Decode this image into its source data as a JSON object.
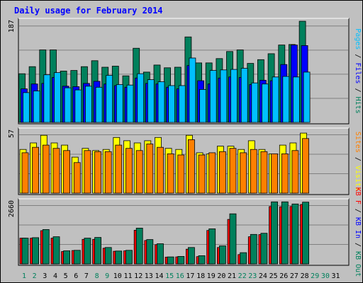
{
  "chart_data": {
    "type": "bar",
    "title": "Daily usage for February 2014",
    "days": [
      "1",
      "2",
      "3",
      "4",
      "5",
      "6",
      "7",
      "8",
      "9",
      "10",
      "11",
      "12",
      "13",
      "14",
      "15",
      "16",
      "17",
      "18",
      "19",
      "20",
      "21",
      "22",
      "23",
      "24",
      "25",
      "26",
      "27",
      "28",
      "29",
      "30",
      "31"
    ],
    "weekend_days": [
      "1",
      "2",
      "8",
      "9",
      "15",
      "16",
      "22",
      "23",
      "29",
      "30"
    ],
    "no_data_days": [
      "29",
      "30",
      "31"
    ],
    "panels": [
      {
        "id": "hits",
        "ymax_label": "187",
        "ymax": 187,
        "axis_label_parts": [
          {
            "text": "Pages",
            "color": "#00bfff"
          },
          {
            "text": " / ",
            "color": "#000000"
          },
          {
            "text": "Files",
            "color": "#0000ff"
          },
          {
            "text": " / ",
            "color": "#000000"
          },
          {
            "text": "Hits",
            "color": "#00805c"
          }
        ],
        "series": [
          {
            "name": "Hits",
            "color": "#00805c",
            "values": [
              90,
              103,
              134,
              134,
              95,
              96,
              103,
              114,
              102,
              104,
              86,
              137,
              93,
              106,
              101,
              102,
              158,
              110,
              110,
              118,
              131,
              134,
              109,
              116,
              127,
              143,
              144,
              187
            ]
          },
          {
            "name": "Files",
            "color": "#0000ff",
            "values": [
              62,
              71,
              72,
              83,
              67,
              66,
              72,
              76,
              71,
              68,
              65,
              82,
              72,
              71,
              65,
              62,
              105,
              77,
              71,
              82,
              84,
              83,
              70,
              78,
              77,
              107,
              143,
              142
            ]
          },
          {
            "name": "Pages",
            "color": "#00bfff",
            "values": [
              55,
              58,
              88,
              92,
              64,
              60,
              67,
              65,
              87,
              70,
              69,
              90,
              79,
              75,
              68,
              68,
              119,
              61,
              96,
              97,
              98,
              100,
              73,
              71,
              84,
              85,
              84,
              93
            ]
          }
        ]
      },
      {
        "id": "visits",
        "ymax_label": "57",
        "ymax": 57,
        "axis_label_parts": [
          {
            "text": "Sites",
            "color": "#ff8000"
          },
          {
            "text": " / ",
            "color": "#000000"
          },
          {
            "text": "Visits",
            "color": "#ffff00"
          }
        ],
        "series": [
          {
            "name": "Visits",
            "color": "#ffff00",
            "values": [
              40,
              46,
              53,
              46,
              44,
              33,
              41,
              39,
              40,
              51,
              48,
              46,
              48,
              51,
              41,
              40,
              53,
              37,
              36,
              43,
              43,
              40,
              48,
              40,
              36,
              44,
              46,
              55
            ]
          },
          {
            "name": "Sites",
            "color": "#ff8000",
            "values": [
              37,
              42,
              44,
              41,
              39,
              28,
              39,
              38,
              38,
              44,
              41,
              39,
              45,
              42,
              36,
              35,
              49,
              35,
              37,
              38,
              41,
              37,
              40,
              38,
              36,
              36,
              39,
              50
            ]
          }
        ]
      },
      {
        "id": "kbytes",
        "ymax_label": "2660",
        "ymax": 2660,
        "axis_label_parts": [
          {
            "text": "KB F",
            "color": "#ff0000"
          },
          {
            "text": " / ",
            "color": "#000000"
          },
          {
            "text": "KB In",
            "color": "#0000ff"
          },
          {
            "text": " / ",
            "color": "#000000"
          },
          {
            "text": "KB Out",
            "color": "#00805c"
          }
        ],
        "series": [
          {
            "name": "KB F",
            "color": "#ff0000",
            "values": [
              1100,
              1100,
              1420,
              1100,
              530,
              570,
              1050,
              1050,
              670,
              540,
              560,
              1440,
              1000,
              820,
              290,
              300,
              630,
              310,
              1430,
              700,
              1900,
              400,
              1160,
              1250,
              2450,
              2440,
              2450,
              2540
            ]
          },
          {
            "name": "KB Out",
            "color": "#00805c",
            "values": [
              1100,
              1120,
              1470,
              1160,
              560,
              580,
              1100,
              1130,
              700,
              550,
              580,
              1530,
              1040,
              860,
              300,
              320,
              700,
              350,
              1500,
              770,
              2140,
              480,
              1260,
              1310,
              2650,
              2650,
              2560,
              2640
            ]
          }
        ]
      }
    ]
  }
}
